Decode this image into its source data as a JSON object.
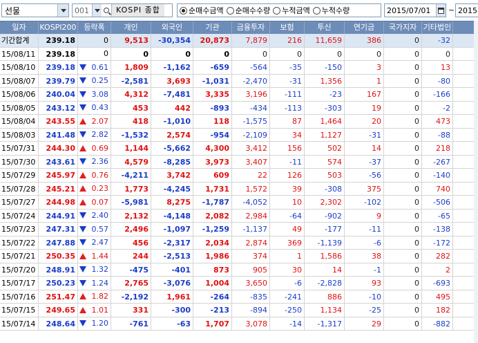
{
  "toolbar": {
    "market_select": "선물",
    "code": "001",
    "code_name": "KOSPI 종합",
    "radios": [
      {
        "label": "순매수금액",
        "selected": true
      },
      {
        "label": "순매수수량",
        "selected": false
      },
      {
        "label": "누적금액",
        "selected": false
      },
      {
        "label": "누적수량",
        "selected": false
      }
    ],
    "date_from": "2015/07/01",
    "date_sep": "~",
    "date_to": "2015"
  },
  "columns": [
    "일자",
    "KOSPI200",
    "등락폭",
    "개인",
    "외국인",
    "기관",
    "금융투자",
    "보험",
    "투신",
    "연기금",
    "국가지자",
    "기타법인"
  ],
  "total_row": {
    "date": "기간합계",
    "kospi": "239.18",
    "change": "0",
    "values": [
      "9,513",
      "-30,354",
      "20,873",
      "7,879",
      "216",
      "11,659",
      "386",
      "0",
      "-32"
    ]
  },
  "rows": [
    {
      "date": "15/08/11",
      "kospi": "239.18",
      "dir": "none",
      "change": "0",
      "values": [
        "0",
        "0",
        "0",
        "0",
        "0",
        "0",
        "0",
        "0",
        "0"
      ]
    },
    {
      "date": "15/08/10",
      "kospi": "239.18",
      "dir": "down",
      "change": "0.61",
      "values": [
        "1,809",
        "-1,162",
        "-659",
        "-564",
        "-35",
        "-150",
        "3",
        "0",
        "13"
      ]
    },
    {
      "date": "15/08/07",
      "kospi": "239.79",
      "dir": "down",
      "change": "0.25",
      "values": [
        "-2,581",
        "3,693",
        "-1,031",
        "-2,470",
        "-31",
        "1,356",
        "1",
        "0",
        "-80"
      ]
    },
    {
      "date": "15/08/06",
      "kospi": "240.04",
      "dir": "down",
      "change": "3.08",
      "values": [
        "4,312",
        "-7,481",
        "3,335",
        "3,196",
        "-111",
        "-23",
        "167",
        "0",
        "-166"
      ]
    },
    {
      "date": "15/08/05",
      "kospi": "243.12",
      "dir": "down",
      "change": "0.43",
      "values": [
        "453",
        "442",
        "-893",
        "-434",
        "-113",
        "-303",
        "19",
        "0",
        "-2"
      ]
    },
    {
      "date": "15/08/04",
      "kospi": "243.55",
      "dir": "up",
      "change": "2.07",
      "values": [
        "418",
        "-1,010",
        "118",
        "-1,575",
        "87",
        "1,464",
        "20",
        "0",
        "473"
      ]
    },
    {
      "date": "15/08/03",
      "kospi": "241.48",
      "dir": "down",
      "change": "2.82",
      "values": [
        "-1,532",
        "2,574",
        "-954",
        "-2,109",
        "34",
        "1,127",
        "-31",
        "0",
        "-88"
      ]
    },
    {
      "date": "15/07/31",
      "kospi": "244.30",
      "dir": "up",
      "change": "0.69",
      "values": [
        "1,144",
        "-5,662",
        "4,300",
        "3,412",
        "156",
        "502",
        "14",
        "0",
        "218"
      ]
    },
    {
      "date": "15/07/30",
      "kospi": "243.61",
      "dir": "down",
      "change": "2.36",
      "values": [
        "4,579",
        "-8,285",
        "3,973",
        "3,407",
        "-11",
        "574",
        "-37",
        "0",
        "-267"
      ]
    },
    {
      "date": "15/07/29",
      "kospi": "245.97",
      "dir": "up",
      "change": "0.76",
      "values": [
        "-4,211",
        "3,742",
        "609",
        "22",
        "126",
        "503",
        "-56",
        "0",
        "-140"
      ]
    },
    {
      "date": "15/07/28",
      "kospi": "245.21",
      "dir": "up",
      "change": "0.23",
      "values": [
        "1,773",
        "-4,245",
        "1,731",
        "1,572",
        "39",
        "-308",
        "375",
        "0",
        "740"
      ]
    },
    {
      "date": "15/07/27",
      "kospi": "244.98",
      "dir": "up",
      "change": "0.07",
      "values": [
        "-5,981",
        "8,275",
        "-1,787",
        "-4,052",
        "10",
        "2,302",
        "-102",
        "0",
        "-506"
      ]
    },
    {
      "date": "15/07/24",
      "kospi": "244.91",
      "dir": "down",
      "change": "2.40",
      "values": [
        "2,132",
        "-4,148",
        "2,082",
        "2,984",
        "-64",
        "-902",
        "9",
        "0",
        "-65"
      ]
    },
    {
      "date": "15/07/23",
      "kospi": "247.31",
      "dir": "down",
      "change": "0.57",
      "values": [
        "2,496",
        "-1,097",
        "-1,259",
        "-1,137",
        "49",
        "-177",
        "-11",
        "0",
        "-138"
      ]
    },
    {
      "date": "15/07/22",
      "kospi": "247.88",
      "dir": "down",
      "change": "2.47",
      "values": [
        "456",
        "-2,317",
        "2,034",
        "2,874",
        "369",
        "-1,139",
        "-6",
        "0",
        "-172"
      ]
    },
    {
      "date": "15/07/21",
      "kospi": "250.35",
      "dir": "up",
      "change": "1.44",
      "values": [
        "244",
        "-2,513",
        "1,986",
        "374",
        "1",
        "1,586",
        "38",
        "0",
        "282"
      ]
    },
    {
      "date": "15/07/20",
      "kospi": "248.91",
      "dir": "down",
      "change": "1.32",
      "values": [
        "-475",
        "-401",
        "873",
        "905",
        "30",
        "14",
        "-1",
        "0",
        "2"
      ]
    },
    {
      "date": "15/07/17",
      "kospi": "250.23",
      "dir": "down",
      "change": "1.24",
      "values": [
        "2,765",
        "-3,076",
        "1,004",
        "3,650",
        "-6",
        "-2,828",
        "93",
        "0",
        "-693"
      ]
    },
    {
      "date": "15/07/16",
      "kospi": "251.47",
      "dir": "up",
      "change": "1.82",
      "values": [
        "-2,192",
        "1,961",
        "-264",
        "-835",
        "-241",
        "886",
        "-10",
        "0",
        "495"
      ]
    },
    {
      "date": "15/07/15",
      "kospi": "249.65",
      "dir": "up",
      "change": "1.01",
      "values": [
        "331",
        "-300",
        "-213",
        "-894",
        "-250",
        "1,134",
        "-25",
        "0",
        "182"
      ]
    },
    {
      "date": "15/07/14",
      "kospi": "248.64",
      "dir": "down",
      "change": "1.20",
      "values": [
        "-761",
        "-63",
        "1,707",
        "3,078",
        "-14",
        "-1,317",
        "29",
        "0",
        "-882"
      ]
    }
  ],
  "colors": {
    "up": "#e01010",
    "down": "#1a3cc8",
    "header_bg": "#6e8cb8",
    "total_bg": "#dce7f4"
  }
}
